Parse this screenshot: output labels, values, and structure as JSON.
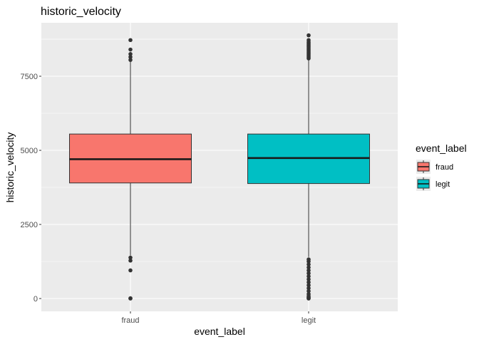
{
  "chart_data": {
    "type": "boxplot",
    "title": "historic_velocity",
    "xlabel": "event_label",
    "ylabel": "historic_velocity",
    "categories": [
      "fraud",
      "legit"
    ],
    "ylim": [
      -250,
      9100
    ],
    "yticks": [
      0,
      2500,
      5000,
      7500
    ],
    "ytick_labels": [
      "0",
      "2500",
      "5000",
      "7500"
    ],
    "grid": true,
    "legend": {
      "title": "event_label",
      "placement": "right",
      "entries": [
        "fraud",
        "legit"
      ]
    },
    "colors": {
      "fraud": "#F8766D",
      "legit": "#00BFC4",
      "panel": "#EBEBEB",
      "grid": "#FFFFFF"
    },
    "series": [
      {
        "name": "fraud",
        "min": 1450,
        "q1": 3900,
        "median": 4700,
        "q3": 5550,
        "max": 8000,
        "outliers": [
          0,
          10,
          950,
          1280,
          1380,
          8050,
          8150,
          8250,
          8400,
          8720
        ]
      },
      {
        "name": "legit",
        "min": 1400,
        "q1": 3880,
        "median": 4740,
        "q3": 5550,
        "max": 8050,
        "outliers": [
          0,
          20,
          40,
          80,
          150,
          250,
          350,
          450,
          550,
          650,
          750,
          850,
          950,
          1050,
          1150,
          1250,
          1320,
          8100,
          8150,
          8200,
          8250,
          8300,
          8350,
          8400,
          8450,
          8500,
          8550,
          8600,
          8650,
          8720,
          8880
        ]
      }
    ]
  }
}
